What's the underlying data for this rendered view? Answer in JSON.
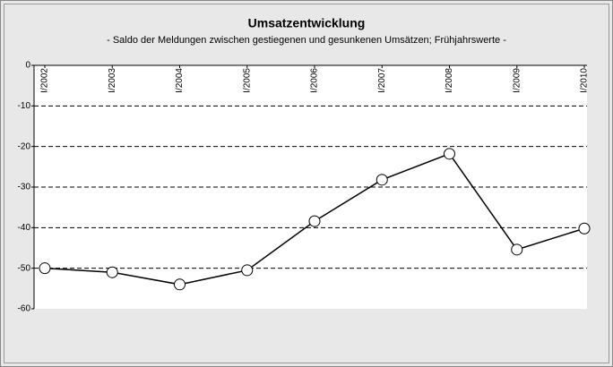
{
  "chart_data": {
    "type": "line",
    "title": "Umsatzentwicklung",
    "subtitle": "- Saldo der Meldungen zwischen gestiegenen und gesunkenen Umsätzen; Frühjahrswerte -",
    "categories": [
      "I/2002",
      "I/2003",
      "I/2004",
      "I/2005",
      "I/2006",
      "I/2007",
      "I/2008",
      "I/2009",
      "I/2010"
    ],
    "values": [
      -50,
      -51,
      -54,
      -50.5,
      -38.4,
      -28.2,
      -21.8,
      -45.4,
      -40.2
    ],
    "color": "#000000",
    "ylim": [
      -60,
      0
    ],
    "yticks": [
      0,
      -10,
      -20,
      -30,
      -40,
      -50,
      -60
    ],
    "grid": true
  }
}
